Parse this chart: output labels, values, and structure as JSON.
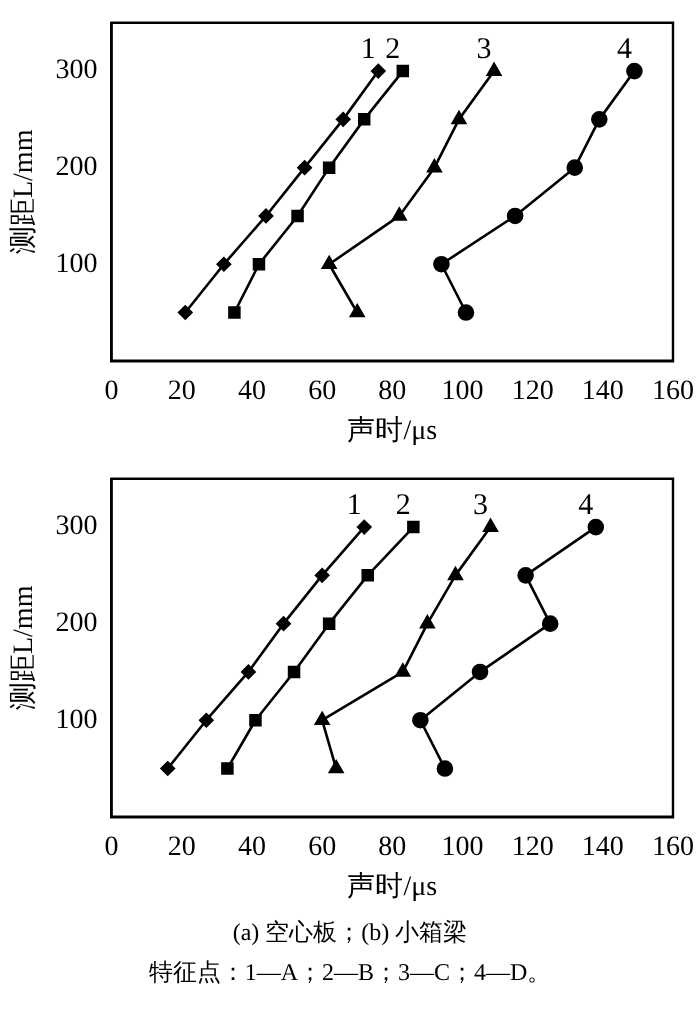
{
  "chart_data": [
    {
      "type": "line",
      "xlabel": "声时/μs",
      "ylabel": "测距L/mm",
      "xlim": [
        0,
        160
      ],
      "xticks": [
        0,
        20,
        40,
        60,
        80,
        100,
        120,
        140,
        160
      ],
      "ylim": [
        0,
        350
      ],
      "yticks": [
        100,
        200,
        300
      ],
      "grid": false,
      "legend": false,
      "series": [
        {
          "name": "1",
          "color": "#000000",
          "marker": "diamond",
          "x": [
            21,
            32,
            44,
            55,
            66,
            76
          ],
          "values": [
            50,
            100,
            150,
            200,
            250,
            300
          ]
        },
        {
          "name": "2",
          "color": "#000000",
          "marker": "square",
          "x": [
            35,
            42,
            53,
            62,
            72,
            83
          ],
          "values": [
            50,
            100,
            150,
            200,
            250,
            300
          ]
        },
        {
          "name": "3",
          "color": "#000000",
          "marker": "triangle",
          "x": [
            70,
            62,
            82,
            92,
            99,
            109
          ],
          "values": [
            50,
            100,
            150,
            200,
            250,
            300
          ]
        },
        {
          "name": "4",
          "color": "#000000",
          "marker": "circle",
          "x": [
            101,
            94,
            115,
            132,
            139,
            149
          ],
          "values": [
            50,
            100,
            150,
            200,
            250,
            300
          ]
        }
      ]
    },
    {
      "type": "line",
      "xlabel": "声时/μs",
      "ylabel": "测距L/mm",
      "xlim": [
        0,
        160
      ],
      "xticks": [
        0,
        20,
        40,
        60,
        80,
        100,
        120,
        140,
        160
      ],
      "ylim": [
        0,
        350
      ],
      "yticks": [
        100,
        200,
        300
      ],
      "grid": false,
      "legend": false,
      "annotations": [
        "(a) 空心板；(b) 小箱梁",
        "特征点：1—A；2—B；3—C；4—D。"
      ],
      "series": [
        {
          "name": "1",
          "color": "#000000",
          "marker": "diamond",
          "x": [
            16,
            27,
            39,
            49,
            60,
            72
          ],
          "values": [
            50,
            100,
            150,
            200,
            250,
            300
          ]
        },
        {
          "name": "2",
          "color": "#000000",
          "marker": "square",
          "x": [
            33,
            41,
            52,
            62,
            73,
            86
          ],
          "values": [
            50,
            100,
            150,
            200,
            250,
            300
          ]
        },
        {
          "name": "3",
          "color": "#000000",
          "marker": "triangle",
          "x": [
            64,
            60,
            83,
            90,
            98,
            108
          ],
          "values": [
            50,
            100,
            150,
            200,
            250,
            300
          ]
        },
        {
          "name": "4",
          "color": "#000000",
          "marker": "circle",
          "x": [
            95,
            88,
            105,
            125,
            118,
            138
          ],
          "values": [
            50,
            100,
            150,
            200,
            250,
            300
          ]
        }
      ]
    }
  ]
}
